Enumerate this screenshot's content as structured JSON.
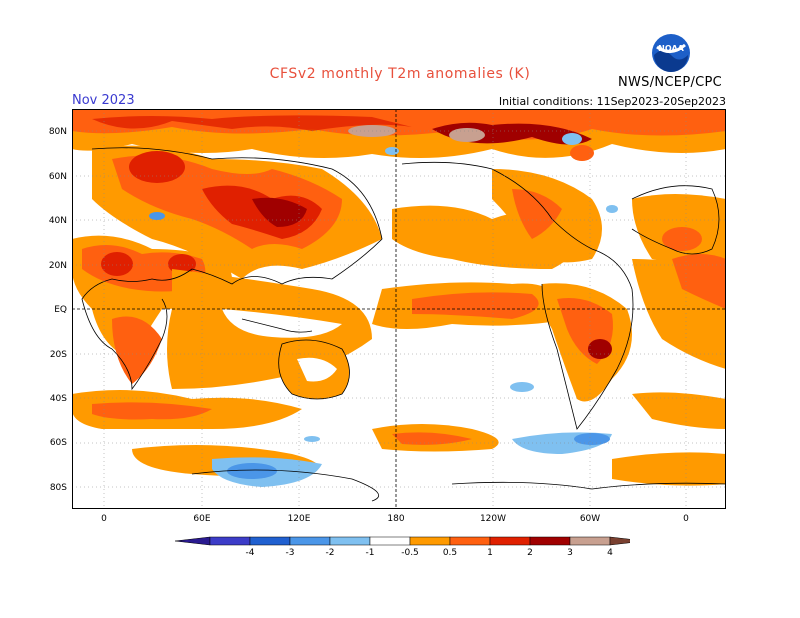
{
  "header": {
    "title": "CFSv2 monthly T2m anomalies (K)",
    "month": "Nov 2023",
    "initial_conditions": "Initial conditions: 11Sep2023-20Sep2023",
    "agency": "NWS/NCEP/CPC",
    "logo_text": "NOAA"
  },
  "map": {
    "lat_labels": [
      "80N",
      "60N",
      "40N",
      "20N",
      "EQ",
      "20S",
      "40S",
      "60S",
      "80S"
    ],
    "lon_labels": [
      "0",
      "60E",
      "120E",
      "180",
      "120W",
      "60W",
      "0"
    ],
    "anomaly_regions": [
      {
        "name": "arctic-ocean",
        "level": 2
      },
      {
        "name": "northern-eurasia",
        "level": 2
      },
      {
        "name": "central-asia",
        "level": 3
      },
      {
        "name": "north-africa",
        "level": 2
      },
      {
        "name": "arabia-india",
        "level": 2
      },
      {
        "name": "north-pacific",
        "level": 1
      },
      {
        "name": "equatorial-pacific",
        "level": 1.5
      },
      {
        "name": "central-north-america",
        "level": 2
      },
      {
        "name": "south-america",
        "level": 2
      },
      {
        "name": "southern-ocean",
        "level": 1
      },
      {
        "name": "antarctica-east",
        "level": -1
      },
      {
        "name": "drake-passage",
        "level": -1
      }
    ]
  },
  "colorbar": {
    "labels": [
      "-4",
      "-3",
      "-2",
      "-1",
      "-0.5",
      "0.5",
      "1",
      "2",
      "3",
      "4"
    ],
    "colors": [
      "#2a1a90",
      "#3c3cc8",
      "#2060d0",
      "#4b96e8",
      "#7fc0f0",
      "#ffffff",
      "#ff9a00",
      "#ff6010",
      "#e02000",
      "#a00000",
      "#c8a090",
      "#7a4030"
    ]
  }
}
